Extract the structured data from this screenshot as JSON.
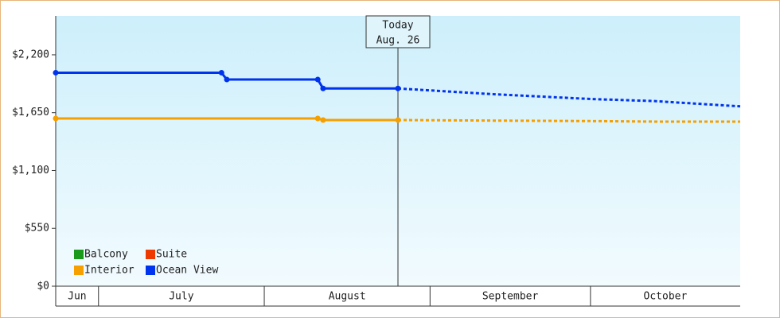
{
  "chart_data": {
    "type": "line",
    "annotation": {
      "label": "Today",
      "date": "Aug. 26",
      "x": 64
    },
    "xlim": [
      0,
      128
    ],
    "xbands": [
      {
        "label": "Jun",
        "start": 0,
        "end": 8
      },
      {
        "label": "July",
        "start": 8,
        "end": 39
      },
      {
        "label": "August",
        "start": 39,
        "end": 70
      },
      {
        "label": "September",
        "start": 70,
        "end": 100
      },
      {
        "label": "October",
        "start": 100,
        "end": 128
      }
    ],
    "ylim": [
      0,
      2570
    ],
    "yticks": [
      {
        "value": 0,
        "label": "$0"
      },
      {
        "value": 550,
        "label": "$550"
      },
      {
        "value": 1100,
        "label": "$1,100"
      },
      {
        "value": 1650,
        "label": "$1,650"
      },
      {
        "value": 2200,
        "label": "$2,200"
      }
    ],
    "series": [
      {
        "name": "Balcony",
        "color": "#1a9a1a",
        "x": [],
        "values": [],
        "forecast": {
          "x": [],
          "values": []
        }
      },
      {
        "name": "Suite",
        "color": "#ee3a00",
        "x": [],
        "values": [],
        "forecast": {
          "x": [],
          "values": []
        }
      },
      {
        "name": "Interior",
        "color": "#f5a000",
        "x": [
          0,
          49,
          50,
          64
        ],
        "values": [
          1595,
          1595,
          1580,
          1580
        ],
        "forecast": {
          "x": [
            64,
            80,
            100,
            112,
            128
          ],
          "values": [
            1580,
            1575,
            1570,
            1565,
            1565
          ]
        }
      },
      {
        "name": "Ocean View",
        "color": "#0033ee",
        "x": [
          0,
          31,
          32,
          49,
          50,
          64
        ],
        "values": [
          2030,
          2030,
          1965,
          1965,
          1880,
          1880
        ],
        "forecast": {
          "x": [
            64,
            82,
            100,
            112,
            128
          ],
          "values": [
            1880,
            1825,
            1780,
            1760,
            1710
          ]
        }
      }
    ]
  }
}
